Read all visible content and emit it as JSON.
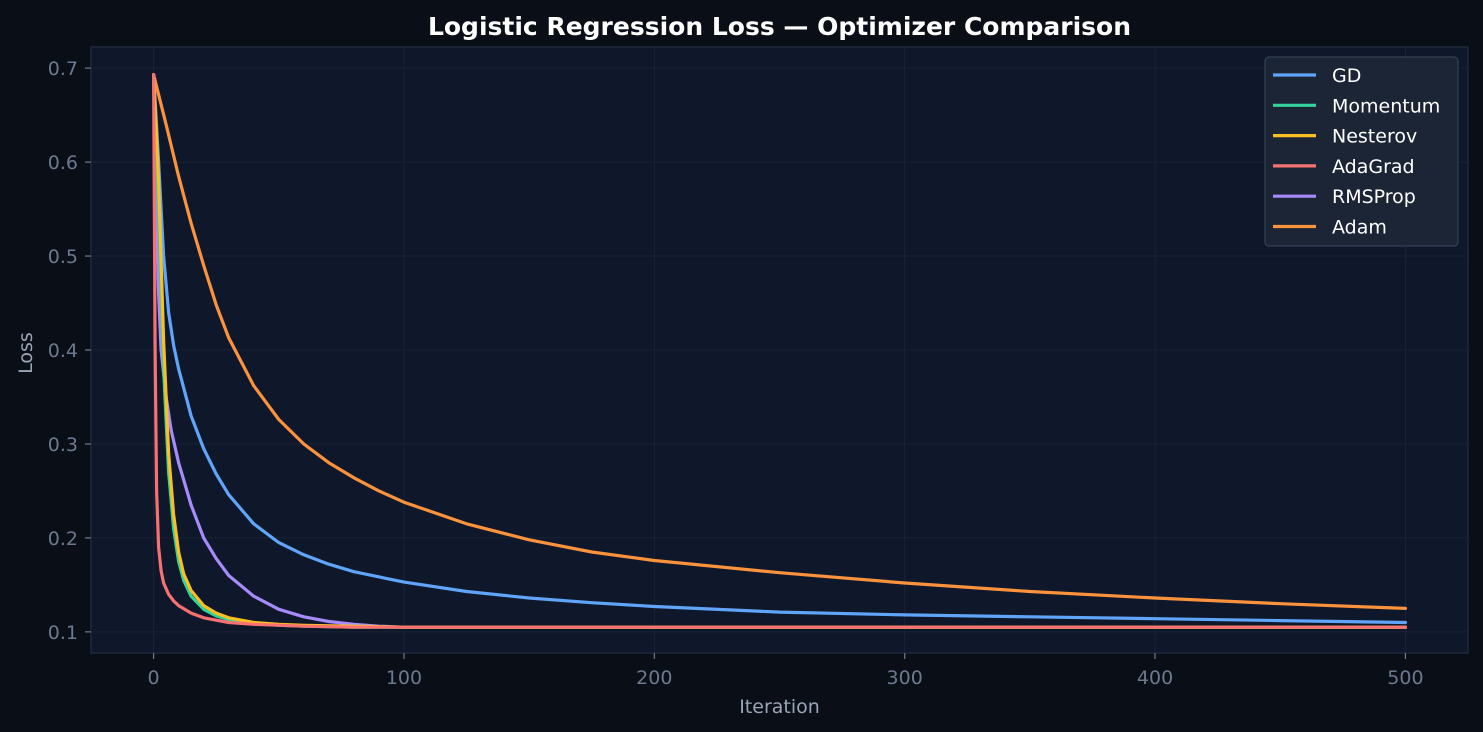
{
  "chart_data": {
    "type": "line",
    "title": "Logistic Regression Loss — Optimizer Comparison",
    "xlabel": "Iteration",
    "ylabel": "Loss",
    "xlim": [
      -25,
      525
    ],
    "ylim": [
      0.0775,
      0.7225
    ],
    "xticks": [
      0,
      100,
      200,
      300,
      400,
      500
    ],
    "yticks": [
      0.1,
      0.2,
      0.3,
      0.4,
      0.5,
      0.6,
      0.7
    ],
    "grid": true,
    "legend": "top-right",
    "colors": {
      "background": "#0a0e17",
      "plot_background": "#0f172a",
      "grid": "#1a2336",
      "spine": "#1e293b",
      "legend_bg": "#1b2535",
      "legend_border": "#334155"
    },
    "series": [
      {
        "name": "GD",
        "color": "#60a5fa",
        "x": [
          0,
          2,
          4,
          6,
          8,
          10,
          15,
          20,
          25,
          30,
          40,
          50,
          60,
          70,
          80,
          100,
          125,
          150,
          175,
          200,
          250,
          300,
          350,
          400,
          450,
          500
        ],
        "y": [
          0.693,
          0.6,
          0.5,
          0.44,
          0.405,
          0.38,
          0.33,
          0.295,
          0.268,
          0.246,
          0.215,
          0.195,
          0.182,
          0.172,
          0.164,
          0.153,
          0.143,
          0.136,
          0.131,
          0.127,
          0.121,
          0.118,
          0.116,
          0.114,
          0.112,
          0.11
        ]
      },
      {
        "name": "Momentum",
        "color": "#34d399",
        "x": [
          0,
          2,
          4,
          6,
          8,
          10,
          12,
          15,
          20,
          25,
          30,
          40,
          50,
          60,
          80,
          100,
          200,
          300,
          400,
          500
        ],
        "y": [
          0.693,
          0.55,
          0.38,
          0.27,
          0.21,
          0.175,
          0.155,
          0.138,
          0.124,
          0.117,
          0.113,
          0.109,
          0.107,
          0.106,
          0.105,
          0.105,
          0.105,
          0.105,
          0.105,
          0.105
        ]
      },
      {
        "name": "Nesterov",
        "color": "#fbbf24",
        "x": [
          0,
          2,
          4,
          6,
          8,
          10,
          12,
          15,
          20,
          25,
          30,
          40,
          50,
          60,
          80,
          100,
          200,
          300,
          400,
          500
        ],
        "y": [
          0.693,
          0.58,
          0.41,
          0.29,
          0.225,
          0.185,
          0.162,
          0.144,
          0.128,
          0.12,
          0.115,
          0.11,
          0.108,
          0.107,
          0.106,
          0.105,
          0.105,
          0.105,
          0.105,
          0.105
        ]
      },
      {
        "name": "AdaGrad",
        "color": "#f87171",
        "x": [
          0,
          0.6,
          1.2,
          2,
          3,
          4,
          6,
          8,
          10,
          15,
          20,
          30,
          40,
          60,
          80,
          100,
          200,
          300,
          400,
          500
        ],
        "y": [
          0.693,
          0.4,
          0.25,
          0.19,
          0.165,
          0.152,
          0.14,
          0.133,
          0.128,
          0.12,
          0.115,
          0.11,
          0.108,
          0.106,
          0.105,
          0.105,
          0.105,
          0.105,
          0.105,
          0.105
        ]
      },
      {
        "name": "RMSProp",
        "color": "#a78bfa",
        "x": [
          0,
          1,
          2,
          3,
          5,
          7,
          10,
          15,
          20,
          25,
          30,
          40,
          50,
          60,
          70,
          80,
          90,
          100,
          150,
          200,
          300,
          400,
          500
        ],
        "y": [
          0.693,
          0.55,
          0.46,
          0.4,
          0.35,
          0.315,
          0.28,
          0.235,
          0.2,
          0.178,
          0.16,
          0.138,
          0.124,
          0.116,
          0.111,
          0.108,
          0.106,
          0.105,
          0.105,
          0.105,
          0.105,
          0.105,
          0.105
        ]
      },
      {
        "name": "Adam",
        "color": "#fb923c",
        "x": [
          0,
          5,
          10,
          15,
          20,
          25,
          30,
          40,
          50,
          60,
          70,
          80,
          90,
          100,
          125,
          150,
          175,
          200,
          250,
          300,
          350,
          400,
          450,
          500
        ],
        "y": [
          0.693,
          0.64,
          0.585,
          0.535,
          0.49,
          0.448,
          0.413,
          0.362,
          0.326,
          0.3,
          0.28,
          0.264,
          0.25,
          0.238,
          0.215,
          0.198,
          0.185,
          0.176,
          0.163,
          0.152,
          0.143,
          0.136,
          0.13,
          0.125
        ]
      }
    ]
  }
}
